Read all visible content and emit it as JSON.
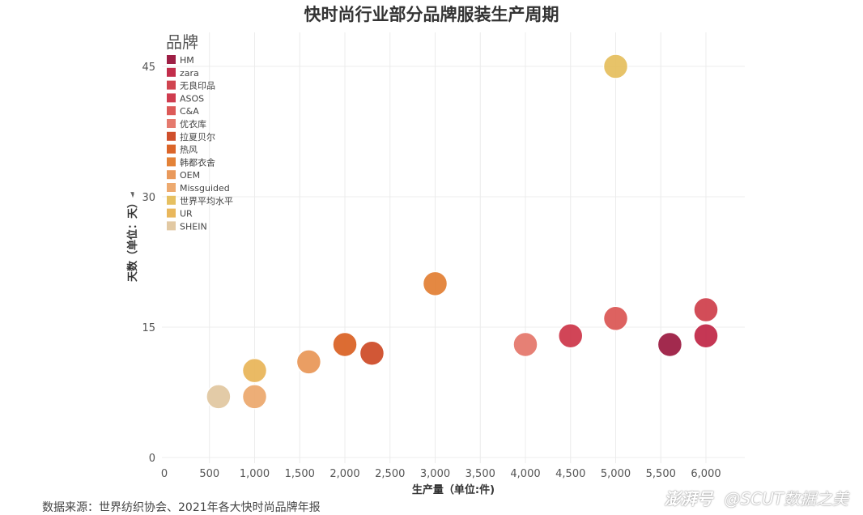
{
  "chart_data": {
    "type": "scatter",
    "title": "快时尚行业部分品牌服装生产周期",
    "xlabel": "生产量（单位:件)",
    "ylabel": "天数（单位：天）",
    "xlim": [
      0,
      6450
    ],
    "ylim": [
      0,
      49
    ],
    "x_ticks": [
      0,
      500,
      1000,
      1500,
      2000,
      2500,
      3000,
      3500,
      4000,
      4500,
      5000,
      5500,
      6000
    ],
    "x_tick_labels": [
      "0",
      "500",
      "1,000",
      "1,500",
      "2,000",
      "2,500",
      "3,000",
      "3,500",
      "4,000",
      "4,500",
      "5,000",
      "5,500",
      "6,000"
    ],
    "y_ticks": [
      0,
      15,
      30,
      45
    ],
    "y_tick_labels": [
      "0",
      "15",
      "30",
      "45"
    ],
    "grid": true,
    "legend_position": "top-left",
    "legend_title": "品牌",
    "series": [
      {
        "name": "HM",
        "color": "#9e1f45",
        "points": [
          [
            5600,
            13
          ]
        ]
      },
      {
        "name": "zara",
        "color": "#c22d4b",
        "points": [
          [
            6000,
            14
          ]
        ]
      },
      {
        "name": "无良印品",
        "color": "#d04450",
        "points": [
          [
            6000,
            17
          ]
        ]
      },
      {
        "name": "ASOS",
        "color": "#cf3c4f",
        "points": [
          [
            4500,
            14
          ]
        ]
      },
      {
        "name": "C&A",
        "color": "#dc5a58",
        "points": [
          [
            5000,
            16
          ]
        ]
      },
      {
        "name": "优衣库",
        "color": "#e57a6e",
        "points": [
          [
            4000,
            13
          ]
        ]
      },
      {
        "name": "拉夏贝尔",
        "color": "#cf4f2c",
        "points": [
          [
            2300,
            12
          ]
        ]
      },
      {
        "name": "热风",
        "color": "#db6529",
        "points": [
          [
            2000,
            13
          ]
        ]
      },
      {
        "name": "韩都衣舍",
        "color": "#e38238",
        "points": [
          [
            3000,
            20
          ]
        ]
      },
      {
        "name": "OEM",
        "color": "#e9995b",
        "points": [
          [
            1600,
            11
          ]
        ]
      },
      {
        "name": "Missguided",
        "color": "#edaa70",
        "points": [
          [
            1000,
            7
          ]
        ]
      },
      {
        "name": "世界平均水平",
        "color": "#e6c061",
        "points": [
          [
            5000,
            45
          ]
        ]
      },
      {
        "name": "UR",
        "color": "#e9b75c",
        "points": [
          [
            1000,
            10
          ]
        ]
      },
      {
        "name": "SHEIN",
        "color": "#e2c9a3",
        "points": [
          [
            600,
            7
          ]
        ]
      }
    ]
  },
  "source_note": "数据来源：世界纺织协会、2021年各大快时尚品牌年报",
  "watermark": {
    "brand": "澎湃号",
    "handle": "@SCUT数据之美"
  }
}
